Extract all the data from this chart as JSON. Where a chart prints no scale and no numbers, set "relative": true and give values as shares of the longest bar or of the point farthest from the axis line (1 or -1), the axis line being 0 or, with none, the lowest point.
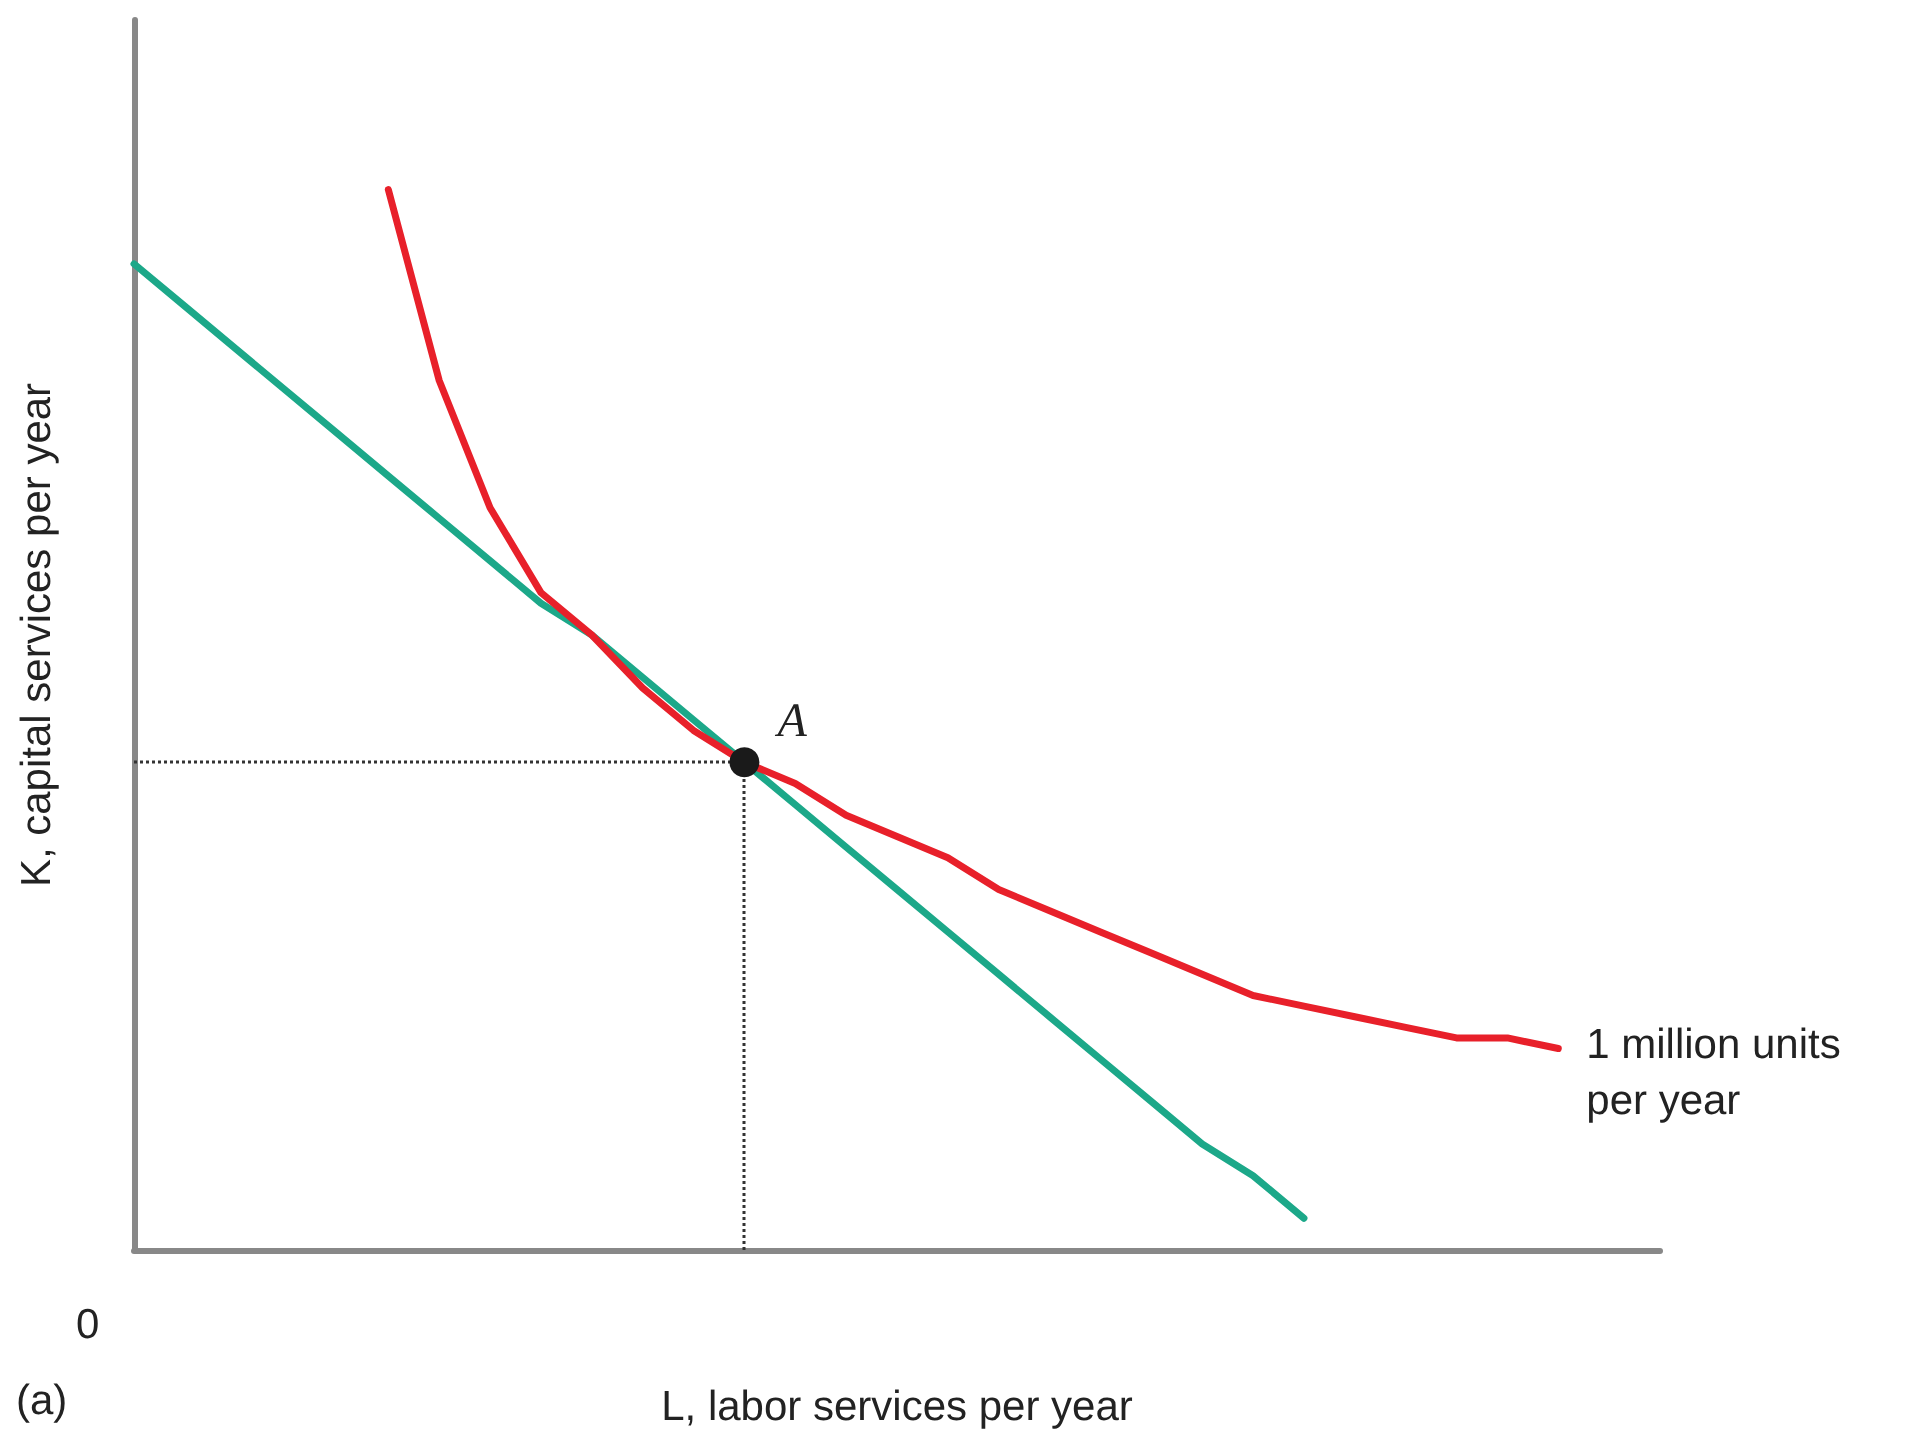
{
  "chart_data": {
    "type": "line",
    "relative": true,
    "xlabel": "L, labor services per year",
    "ylabel": "K, capital services per year",
    "annotations": [
      "0",
      "(a)",
      "A"
    ],
    "categories": [
      null,
      null,
      null,
      null,
      null,
      null,
      null,
      null,
      null,
      null,
      null,
      null,
      null,
      null,
      null,
      null,
      null,
      null,
      null,
      null,
      null,
      null,
      null,
      null,
      null,
      null,
      null,
      null,
      null,
      null,
      null
    ],
    "series": [
      {
        "color": "#1ca889",
        "values": [
          0.93,
          0.89,
          0.85,
          0.81,
          0.77,
          0.73,
          0.69,
          0.65,
          0.61,
          0.58,
          0.54,
          0.5,
          0.46,
          0.42,
          0.38,
          0.34,
          0.3,
          0.26,
          0.22,
          0.18,
          0.14,
          0.1,
          0.07,
          0.03,
          null,
          null,
          null,
          null,
          null,
          null,
          null
        ]
      },
      {
        "name": "1 million units per year",
        "color": "#e8202a",
        "values": [
          null,
          null,
          null,
          null,
          null,
          1.0,
          0.82,
          0.7,
          0.62,
          0.58,
          0.53,
          0.49,
          0.46,
          0.44,
          0.41,
          0.39,
          0.37,
          0.34,
          0.32,
          0.3,
          0.28,
          0.26,
          0.24,
          0.23,
          0.22,
          0.21,
          0.2,
          0.2,
          0.19,
          null,
          null
        ]
      }
    ],
    "ref_lines": [
      {
        "axis": "y",
        "value": 0.46,
        "color": "#333333",
        "line_style": "dotted"
      }
    ],
    "legend": false,
    "grid": false,
    "marker": "none",
    "line_style": "solid"
  }
}
